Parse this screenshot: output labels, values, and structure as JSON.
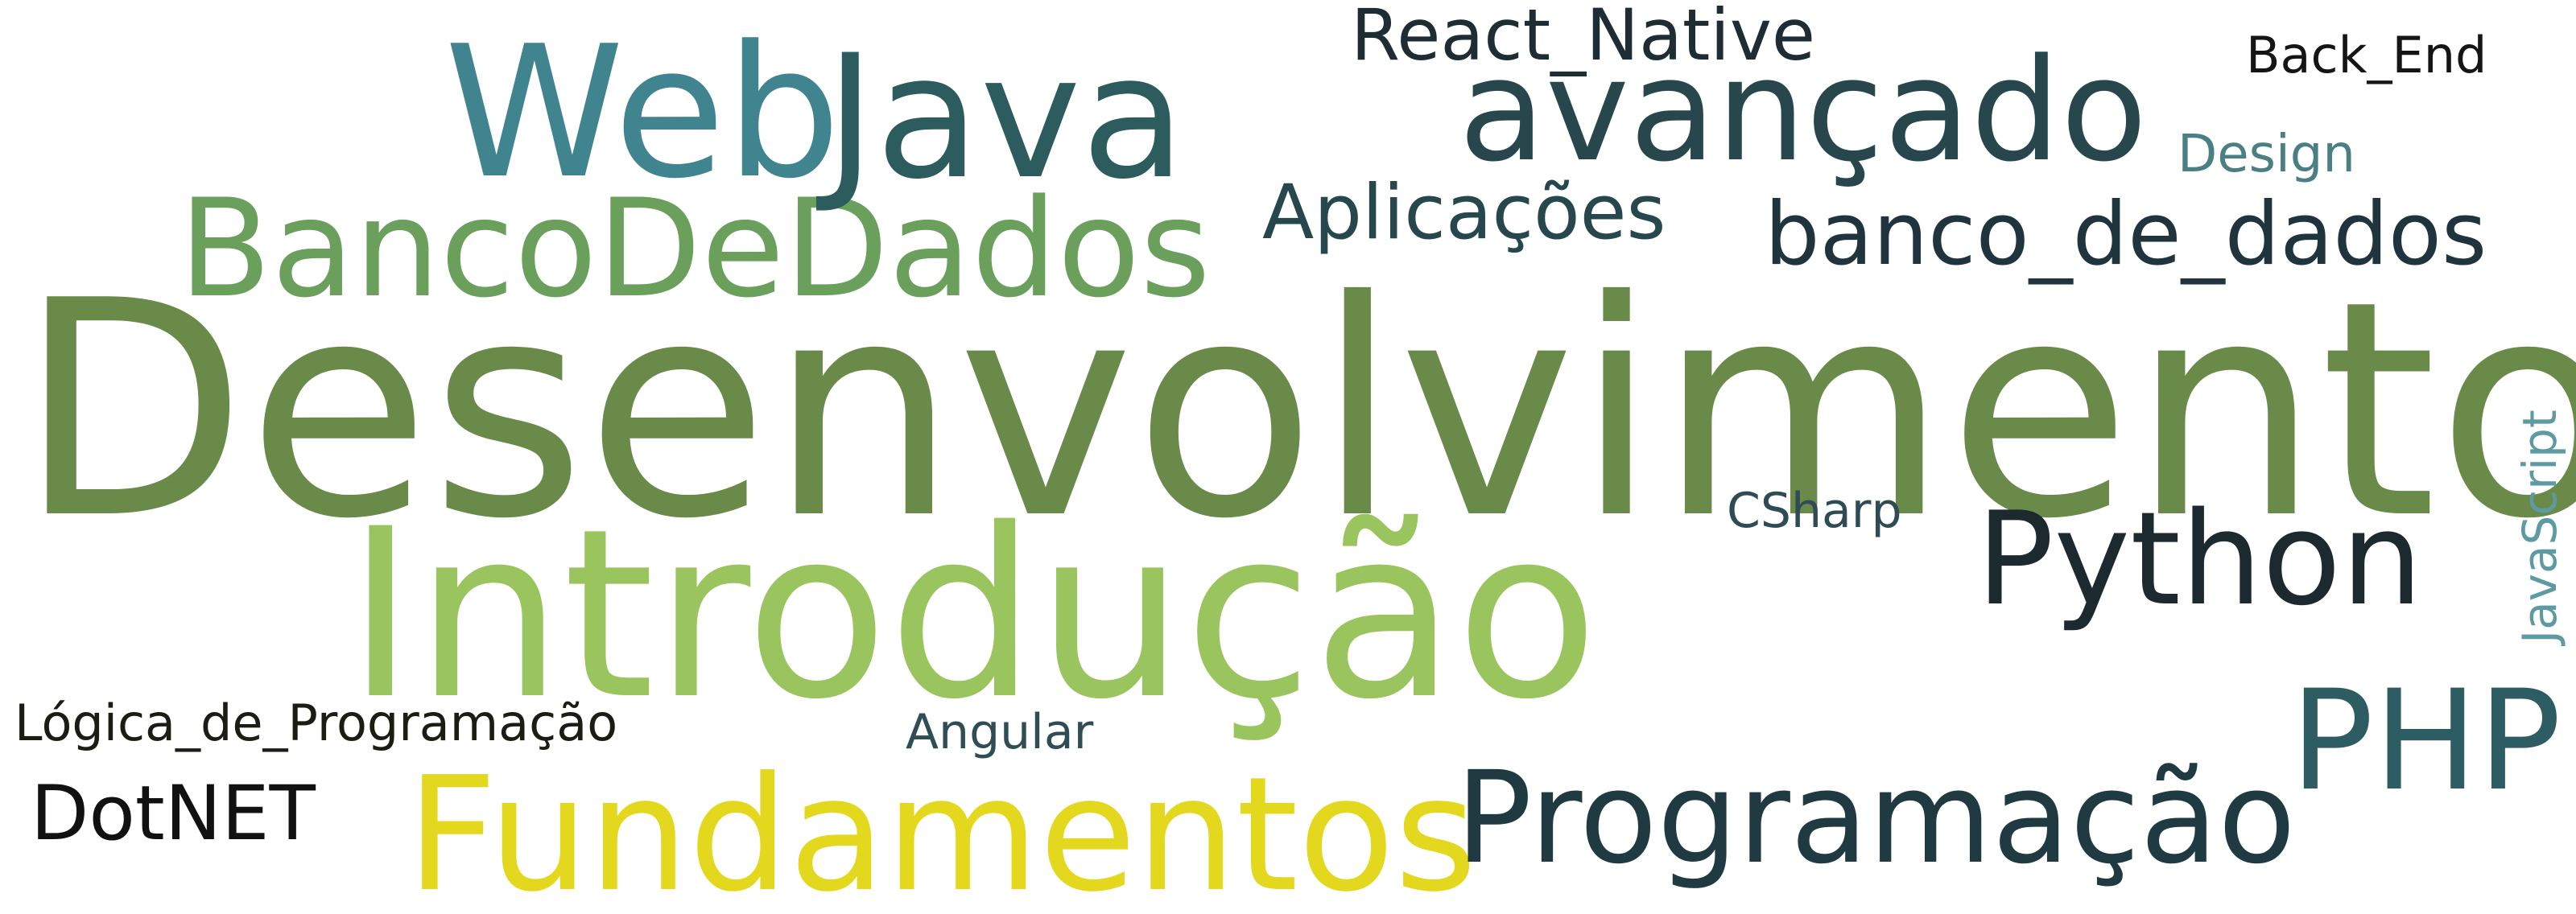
{
  "words": {
    "desenvolvimento": {
      "text": "Desenvolvimento",
      "color": "#6a8a4a"
    },
    "introducao": {
      "text": "Introdução",
      "color": "#9ac45e"
    },
    "fundamentos": {
      "text": "Fundamentos",
      "color": "#e3d81d"
    },
    "bancodedados": {
      "text": "BancoDeDados",
      "color": "#6a9f5c"
    },
    "web": {
      "text": "Web",
      "color": "#3f848e"
    },
    "java": {
      "text": "Java",
      "color": "#2c5c5e"
    },
    "avancado": {
      "text": "avançado",
      "color": "#27474d"
    },
    "react_native": {
      "text": "React_Native",
      "color": "#1d2d33"
    },
    "back_end": {
      "text": "Back_End",
      "color": "#151515"
    },
    "design": {
      "text": "Design",
      "color": "#4a7f83"
    },
    "aplicacoes": {
      "text": "Aplicações",
      "color": "#26484d"
    },
    "banco_de_dados": {
      "text": "banco_de_dados",
      "color": "#1f343d"
    },
    "javascript": {
      "text": "JavaScript",
      "color": "#5e9aa1"
    },
    "csharp": {
      "text": "CSharp",
      "color": "#2f4b55"
    },
    "python": {
      "text": "Python",
      "color": "#1c2a30"
    },
    "php": {
      "text": "PHP",
      "color": "#2d5c63"
    },
    "logica": {
      "text": "Lógica_de_Programação",
      "color": "#1c1c12"
    },
    "angular": {
      "text": "Angular",
      "color": "#2e4d55"
    },
    "dotnet": {
      "text": "DotNET",
      "color": "#111111"
    },
    "programacao": {
      "text": "Programação",
      "color": "#1f3a40"
    }
  }
}
